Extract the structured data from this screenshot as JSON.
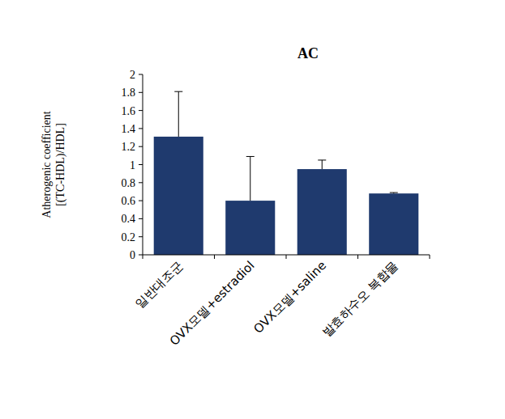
{
  "chart_data": {
    "type": "bar",
    "title": "AC",
    "y_label": "Atherogenic coefficient [(TC-HDL)/HDL]",
    "categories": [
      "일반대조군",
      "OVX모델+estradiol",
      "OVX모델+saline",
      "발효하수오 복합물"
    ],
    "values": [
      1.31,
      0.6,
      0.95,
      0.68
    ],
    "errors": [
      0.5,
      0.49,
      0.1,
      0.01
    ],
    "color": "#1f3a6e",
    "ylim": [
      0,
      2
    ],
    "yticks": [
      0,
      0.2,
      0.4,
      0.6,
      0.8,
      1,
      1.2,
      1.4,
      1.6,
      1.8,
      2
    ],
    "grid": false
  }
}
